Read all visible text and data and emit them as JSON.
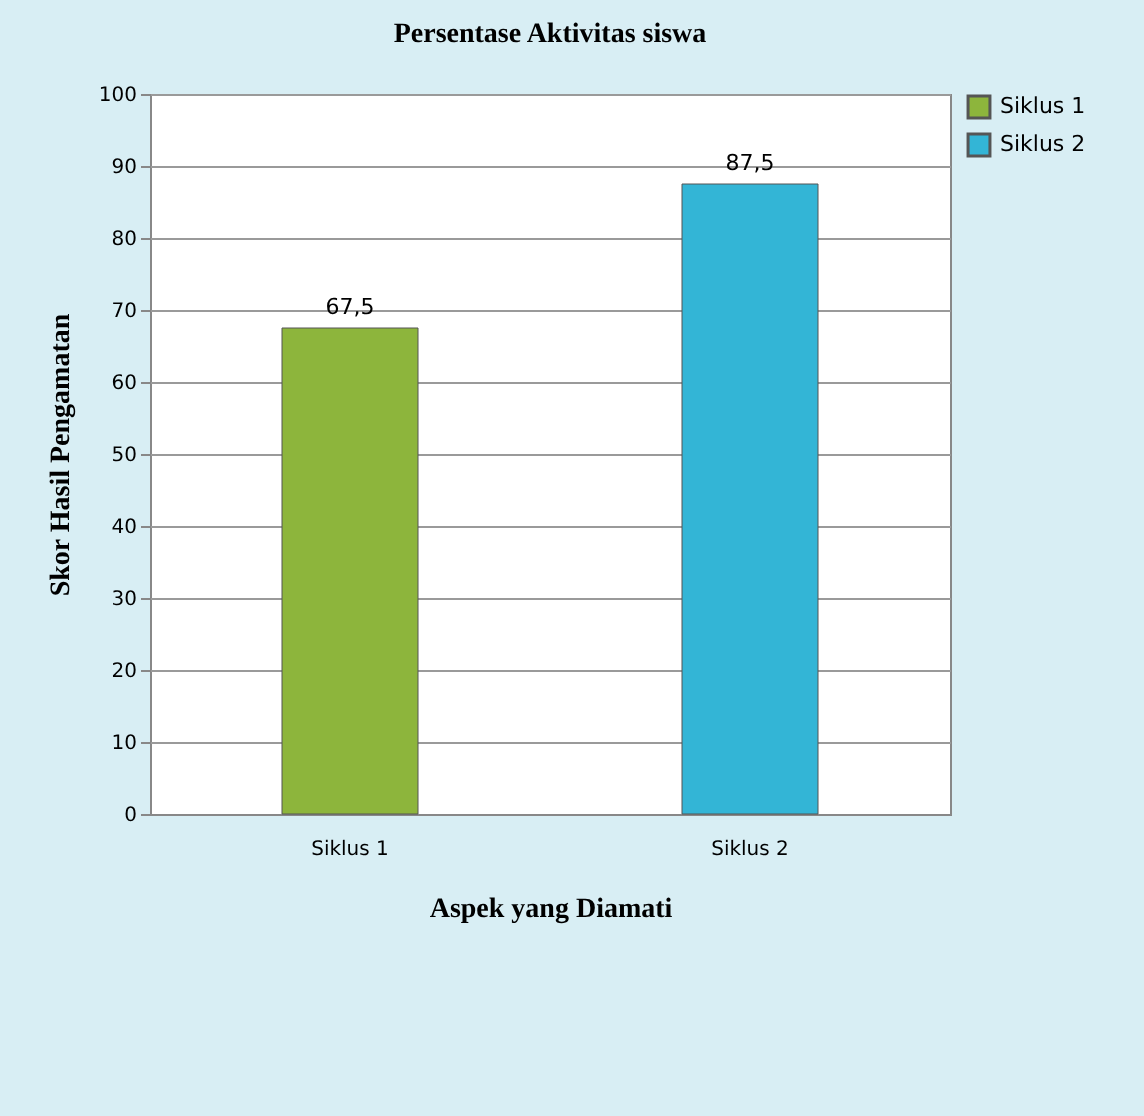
{
  "chart_data": {
    "type": "bar",
    "title": "Persentase Aktivitas siswa",
    "xlabel": "Aspek yang Diamati",
    "ylabel": "Skor Hasil Pengamatan",
    "categories": [
      "Siklus 1",
      "Siklus 2"
    ],
    "series": [
      {
        "name": "Siklus 1",
        "color": "#8db53c",
        "values": [
          67.5,
          null
        ],
        "value_labels": [
          "67,5",
          null
        ]
      },
      {
        "name": "Siklus 2",
        "color": "#33b5d6",
        "values": [
          null,
          87.5
        ],
        "value_labels": [
          null,
          "87,5"
        ]
      }
    ],
    "ylim": [
      0,
      100
    ],
    "yticks": [
      0,
      10,
      20,
      30,
      40,
      50,
      60,
      70,
      80,
      90,
      100
    ],
    "grid": "y",
    "legend": "right"
  }
}
